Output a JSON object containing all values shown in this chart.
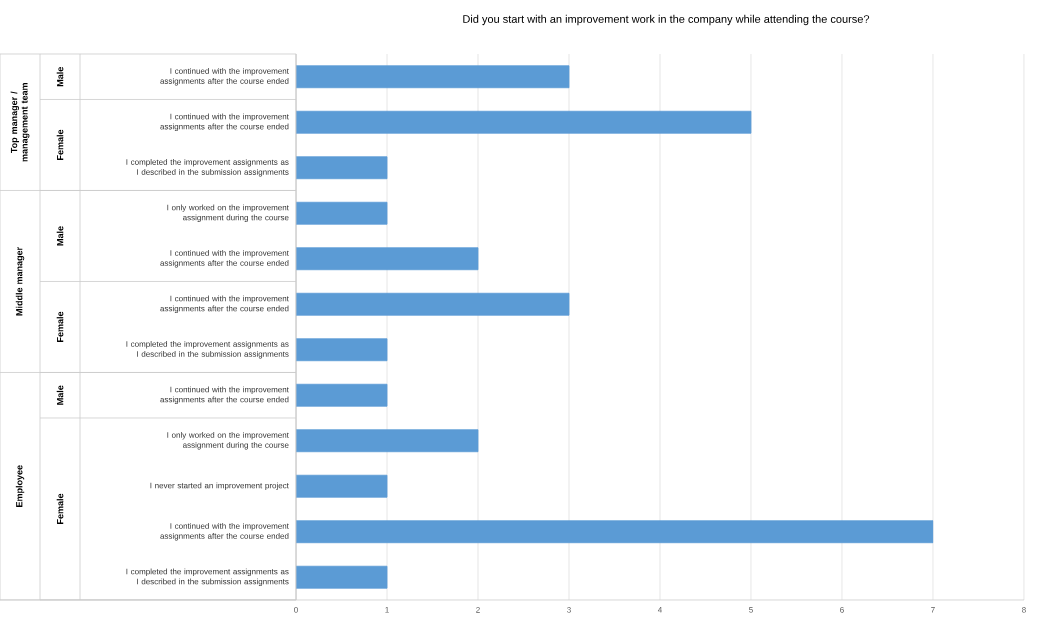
{
  "chart_data": {
    "type": "bar",
    "orientation": "horizontal",
    "title": "Did you start with an improvement work in the company while attending the course?",
    "categories": [
      "I continued with the improvement assignments after the course ended",
      "I continued with the improvement assignments after the course ended",
      "I completed the improvement assignments as I described in the submission assignments",
      "I only worked on the improvement assignment during the course",
      "I continued with the improvement assignments after the course ended",
      "I continued with the improvement assignments after the course ended",
      "I completed the improvement assignments as I described in the submission assignments",
      "I continued with the improvement assignments after the course ended",
      "I only worked on the improvement assignment during the course",
      "I never started an improvement project",
      "I continued with the improvement assignments after the course ended",
      "I completed the improvement assignments as I described in the submission assignments"
    ],
    "values": [
      3,
      5,
      1,
      1,
      2,
      3,
      1,
      1,
      2,
      1,
      7,
      1
    ],
    "color": "#5b9bd5",
    "xlim": [
      0,
      8
    ],
    "xticks": [
      0,
      1,
      2,
      3,
      4,
      5,
      6,
      7,
      8
    ],
    "grid": "x",
    "annotations": [
      "Top manager / management team",
      "Male",
      "Female",
      "Middle manager",
      "Male",
      "Female",
      "Employee",
      "Male",
      "Female"
    ]
  }
}
